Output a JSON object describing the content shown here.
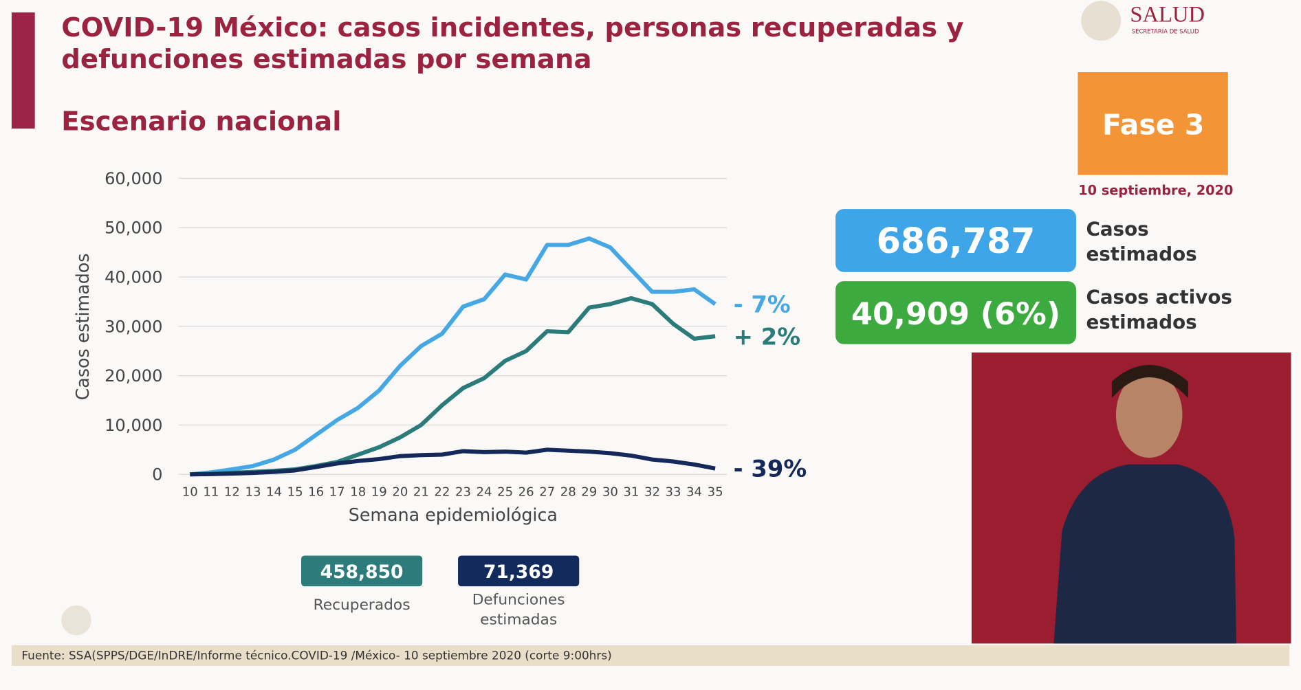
{
  "slide": {
    "title": [
      "COVID-19 México: casos incidentes, personas recuperadas y",
      "defunciones estimadas por semana"
    ],
    "subtitle": "Escenario nacional",
    "logo": {
      "name": "SALUD",
      "sub": "SECRETARÍA DE SALUD"
    },
    "phase": "Fase 3",
    "date": "10 septiembre, 2020",
    "cases_box": {
      "value": "686,787",
      "label": [
        "Casos",
        "estimados"
      ]
    },
    "active_box": {
      "value": "40,909 (6%)",
      "label": [
        "Casos activos",
        "estimados"
      ]
    },
    "recovered_box": {
      "value": "458,850",
      "label": [
        "Recuperados"
      ]
    },
    "deaths_box": {
      "value": "71,369",
      "label": [
        "Defunciones",
        "estimadas"
      ]
    },
    "source": "Fuente: SSA(SPPS/DGE/InDRE/Informe técnico.COVID-19 /México- 10 septiembre 2020 (corte 9:00hrs)"
  },
  "chart_data": {
    "type": "line",
    "x_label": "Semana epidemiológica",
    "y_label": "Casos estimados",
    "x": [
      10,
      11,
      12,
      13,
      14,
      15,
      16,
      17,
      18,
      19,
      20,
      21,
      22,
      23,
      24,
      25,
      26,
      27,
      28,
      29,
      30,
      31,
      32,
      33,
      34,
      35
    ],
    "xlim": [
      10,
      35
    ],
    "ylim": [
      0,
      60000
    ],
    "yticks": [
      0,
      {
        "value": 10000,
        "label": "10,000"
      },
      {
        "value": 20000,
        "label": "20,000"
      },
      {
        "value": 30000,
        "label": "30,000"
      },
      {
        "value": 40000,
        "label": "40,000"
      },
      {
        "value": 50000,
        "label": "50,000"
      },
      {
        "value": 60000,
        "label": "60,000"
      }
    ],
    "grid": true,
    "series": [
      {
        "color": "#45a8e4",
        "end_label": "- 7%",
        "values": [
          0,
          400,
          1000,
          1700,
          3000,
          5000,
          8000,
          11000,
          13500,
          17000,
          22000,
          26000,
          28500,
          34000,
          35500,
          40500,
          39500,
          46500,
          46500,
          47800,
          46000,
          41500,
          37000,
          37000,
          37500,
          34500
        ]
      },
      {
        "color": "#2a7b79",
        "end_label": "+ 2%",
        "values": [
          0,
          100,
          300,
          500,
          700,
          1000,
          1700,
          2500,
          4000,
          5500,
          7500,
          10000,
          14000,
          17500,
          19500,
          23000,
          25000,
          29000,
          28800,
          33800,
          34500,
          35700,
          34500,
          30500,
          27500,
          28000
        ]
      },
      {
        "color": "#14295a",
        "end_label": "- 39%",
        "values": [
          0,
          50,
          150,
          300,
          500,
          800,
          1500,
          2200,
          2700,
          3100,
          3700,
          3900,
          4000,
          4700,
          4500,
          4600,
          4400,
          5000,
          4800,
          4600,
          4300,
          3800,
          3000,
          2600,
          2000,
          1200
        ]
      }
    ]
  }
}
